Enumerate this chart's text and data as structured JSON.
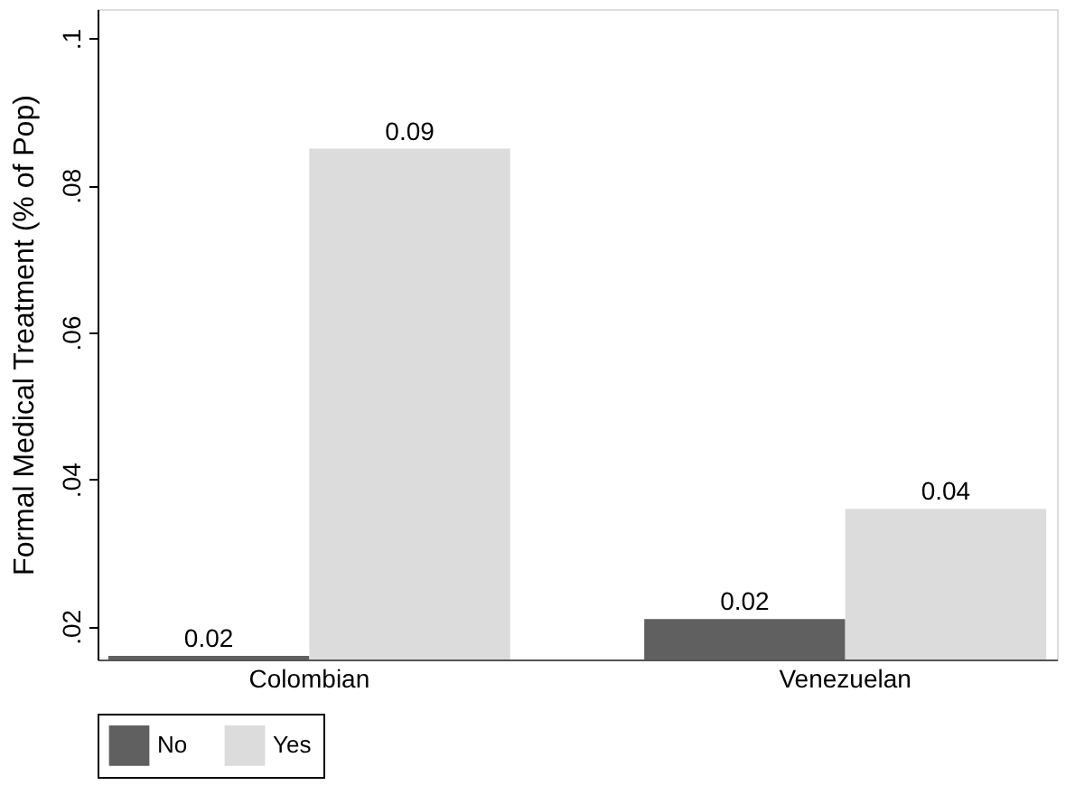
{
  "chart_data": {
    "type": "bar",
    "ylabel": "Formal Medical Treatment (% of Pop)",
    "categories": [
      "Colombian",
      "Venezuelan"
    ],
    "series": [
      {
        "name": "No",
        "color": "#606060",
        "values": [
          0.016,
          0.021
        ],
        "value_labels": [
          "0.02",
          "0.02"
        ]
      },
      {
        "name": "Yes",
        "color": "#dcdcdc",
        "values": [
          0.085,
          0.036
        ],
        "value_labels": [
          "0.09",
          "0.04"
        ]
      }
    ],
    "ylim": [
      0.0155,
      0.104
    ],
    "yticks": [
      {
        "value": 0.02,
        "label": ".02"
      },
      {
        "value": 0.04,
        "label": ".04"
      },
      {
        "value": 0.06,
        "label": ".06"
      },
      {
        "value": 0.08,
        "label": ".08"
      },
      {
        "value": 0.1,
        "label": ".1"
      }
    ],
    "grid": false,
    "legend": "bottom"
  }
}
